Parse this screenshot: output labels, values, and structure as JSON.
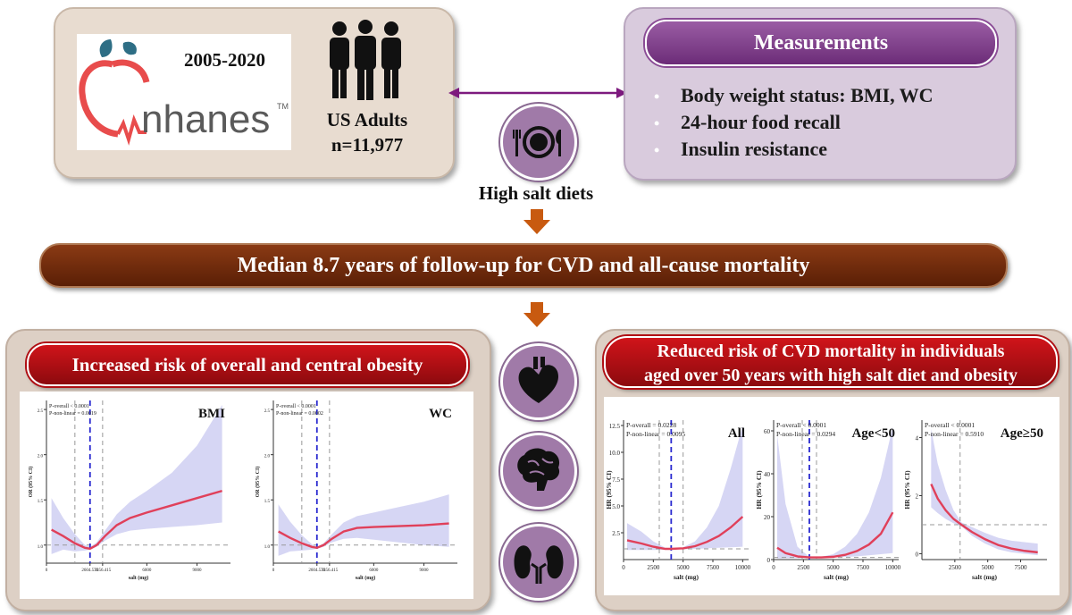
{
  "study": {
    "years": "2005-2020",
    "logo_text": "nhanes",
    "trademark": "TM",
    "population_label": "US Adults",
    "sample_size": "n=11,977"
  },
  "exposure_label": "High salt diets",
  "measurements": {
    "title": "Measurements",
    "items": [
      "Body weight status: BMI, WC",
      "24-hour food recall",
      "Insulin resistance"
    ]
  },
  "followup_banner": "Median 8.7 years of follow-up for CVD and all-cause mortality",
  "obesity_panel": {
    "title": "Increased risk of overall and central obesity",
    "ylabel": "OR (95% CI)"
  },
  "mortality_panel": {
    "title_line1": "Reduced risk of CVD mortality in individuals",
    "title_line2": "aged over 50 years with high salt diet and obesity",
    "ylabel": "HR (95% CI)"
  },
  "icons": [
    "people-icon",
    "plate-cutlery-icon",
    "heart-icon",
    "brain-icon",
    "kidney-icon",
    "arrow-down-icon"
  ],
  "colors": {
    "curve": "#e0405a",
    "band": "#c8c8f0",
    "median_line": "#2a2ad0",
    "banner": "#6e2a0c",
    "red_pill": "#c0121a",
    "purple": "#7d3a8a",
    "arrow": "#c05a10"
  },
  "chart_data": [
    {
      "type": "line",
      "title": "BMI",
      "xlabel": "salt (mg)",
      "ylabel": "OR (95% CI)",
      "x_tick_labels": [
        "0",
        "2604.570",
        "3356.415",
        "6000",
        "9000"
      ],
      "y_tick_labels": [
        "1.0",
        "1.5",
        "2.0",
        "2.5"
      ],
      "xlim": [
        0,
        11000
      ],
      "ylim": [
        0.8,
        2.6
      ],
      "annotations": [
        "P-overall < 0.0001",
        "P-non-linear = 0.0019"
      ],
      "reference_lines_x": [
        1700,
        2604.57,
        3356.415
      ],
      "median_line_x": 2604.57,
      "reference_line_y": 1.0,
      "series": [
        {
          "x": [
            300,
            1000,
            1700,
            2300,
            2604,
            3000,
            3500,
            4200,
            5000,
            6000,
            7500,
            9000,
            10500
          ],
          "y": [
            1.17,
            1.1,
            1.02,
            0.97,
            0.96,
            1.0,
            1.1,
            1.22,
            1.3,
            1.36,
            1.44,
            1.52,
            1.6
          ],
          "lower": [
            0.9,
            0.95,
            0.93,
            0.94,
            0.95,
            0.98,
            1.05,
            1.12,
            1.16,
            1.18,
            1.2,
            1.22,
            1.25
          ],
          "upper": [
            1.52,
            1.3,
            1.12,
            1.0,
            0.98,
            1.03,
            1.16,
            1.34,
            1.48,
            1.6,
            1.8,
            2.1,
            2.55
          ]
        }
      ]
    },
    {
      "type": "line",
      "title": "WC",
      "xlabel": "salt (mg)",
      "ylabel": "OR (95% CI)",
      "x_tick_labels": [
        "0",
        "2604.570",
        "3356.415",
        "6000",
        "9000"
      ],
      "y_tick_labels": [
        "1.0",
        "1.5",
        "2.0",
        "2.5"
      ],
      "xlim": [
        0,
        11000
      ],
      "ylim": [
        0.8,
        2.6
      ],
      "annotations": [
        "P-overall < 0.0001",
        "P-non-linear = 0.0002"
      ],
      "reference_lines_x": [
        1700,
        2604.57,
        3356.415
      ],
      "median_line_x": 2604.57,
      "reference_line_y": 1.0,
      "series": [
        {
          "x": [
            300,
            1000,
            1700,
            2300,
            2604,
            3000,
            3500,
            4200,
            5000,
            6000,
            7500,
            9000,
            10500
          ],
          "y": [
            1.15,
            1.08,
            1.02,
            0.98,
            0.97,
            1.0,
            1.07,
            1.15,
            1.19,
            1.2,
            1.21,
            1.22,
            1.24
          ],
          "lower": [
            0.88,
            0.93,
            0.94,
            0.95,
            0.96,
            0.98,
            1.03,
            1.07,
            1.08,
            1.06,
            1.03,
            1.0,
            0.98
          ],
          "upper": [
            1.45,
            1.26,
            1.11,
            1.01,
            0.98,
            1.02,
            1.12,
            1.25,
            1.32,
            1.36,
            1.42,
            1.48,
            1.56
          ]
        }
      ]
    },
    {
      "type": "line",
      "title": "All",
      "xlabel": "salt (mg)",
      "ylabel": "HR (95% CI)",
      "x_tick_labels": [
        "0",
        "2500",
        "5000",
        "7500",
        "10000"
      ],
      "y_tick_labels": [
        "2.5",
        "5.0",
        "7.5",
        "10.0",
        "12.5"
      ],
      "xlim": [
        0,
        10500
      ],
      "ylim": [
        0,
        13
      ],
      "annotations": [
        "P-overall = 0.0228",
        "P-non-linear = 0.0095"
      ],
      "reference_lines_x": [
        3000,
        4000,
        5000
      ],
      "median_line_x": 4000,
      "reference_line_y": 1.0,
      "series": [
        {
          "x": [
            300,
            1500,
            2500,
            3500,
            4000,
            5000,
            6000,
            7000,
            8000,
            9000,
            10000
          ],
          "y": [
            1.8,
            1.5,
            1.2,
            1.0,
            1.0,
            1.05,
            1.25,
            1.65,
            2.2,
            3.0,
            4.0
          ],
          "lower": [
            0.9,
            0.9,
            0.9,
            0.92,
            0.95,
            0.96,
            1.0,
            1.05,
            1.1,
            1.15,
            1.2
          ],
          "upper": [
            3.4,
            2.6,
            1.7,
            1.1,
            1.05,
            1.15,
            1.7,
            3.0,
            5.0,
            8.5,
            12.5
          ]
        }
      ]
    },
    {
      "type": "line",
      "title": "Age<50",
      "xlabel": "salt (mg)",
      "ylabel": "HR (95% CI)",
      "x_tick_labels": [
        "0",
        "2500",
        "5000",
        "7500",
        "10000"
      ],
      "y_tick_labels": [
        "0",
        "20",
        "40",
        "60"
      ],
      "xlim": [
        0,
        10500
      ],
      "ylim": [
        0,
        65
      ],
      "annotations": [
        "P-overall < 0.0001",
        "P-non-linear = 0.0294"
      ],
      "reference_lines_x": [
        2400,
        3000,
        3600
      ],
      "median_line_x": 3000,
      "reference_line_y": 1.0,
      "series": [
        {
          "x": [
            300,
            1000,
            2000,
            3000,
            4000,
            5000,
            6000,
            7000,
            8000,
            9000,
            10000
          ],
          "y": [
            5.5,
            3.0,
            1.5,
            1.0,
            1.0,
            1.3,
            2.2,
            4.0,
            7.0,
            12.0,
            22.0
          ],
          "lower": [
            0.5,
            0.6,
            0.7,
            0.9,
            0.9,
            1.0,
            1.2,
            1.5,
            2.0,
            2.5,
            3.0
          ],
          "upper": [
            58,
            26,
            6,
            1.2,
            1.3,
            2.5,
            6.0,
            12.0,
            22.0,
            38.0,
            62.0
          ]
        }
      ]
    },
    {
      "type": "line",
      "title": "Age≥50",
      "xlabel": "salt (mg)",
      "ylabel": "HR (95% CI)",
      "x_tick_labels": [
        "2500",
        "5000",
        "7500"
      ],
      "y_tick_labels": [
        "0",
        "2",
        "4"
      ],
      "xlim": [
        0,
        9500
      ],
      "ylim": [
        -0.2,
        4.6
      ],
      "annotations": [
        "P-overall < 0.0001",
        "P-non-linear = 0.5910"
      ],
      "reference_lines_x": [
        2900
      ],
      "median_line_x": null,
      "reference_line_y": 1.0,
      "series": [
        {
          "x": [
            700,
            1200,
            1800,
            2400,
            3000,
            3800,
            4800,
            5800,
            6800,
            7800,
            8800
          ],
          "y": [
            2.4,
            1.9,
            1.5,
            1.2,
            1.0,
            0.75,
            0.5,
            0.3,
            0.18,
            0.1,
            0.05
          ],
          "lower": [
            1.6,
            1.4,
            1.2,
            1.05,
            0.95,
            0.62,
            0.35,
            0.15,
            0.05,
            0.0,
            -0.05
          ],
          "upper": [
            4.3,
            3.1,
            2.2,
            1.5,
            1.08,
            0.92,
            0.72,
            0.55,
            0.45,
            0.4,
            0.35
          ]
        }
      ]
    }
  ]
}
